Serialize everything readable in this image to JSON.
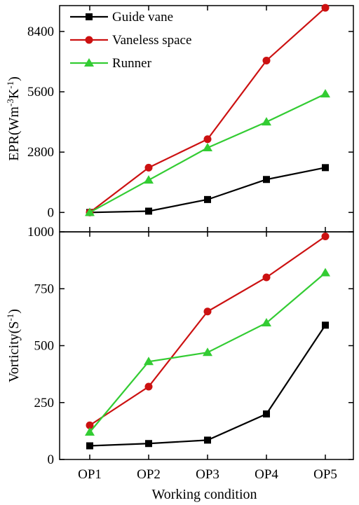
{
  "chart_data": [
    {
      "type": "line",
      "panel": "top",
      "ylabel": "EPR(Wm-3K-1)",
      "ylabel_parts": [
        "EPR(Wm",
        "-3",
        "K",
        "-1",
        ")"
      ],
      "ylim": [
        -900,
        9600
      ],
      "yticks": [
        0,
        2800,
        5600,
        8400
      ],
      "ytick_labels": [
        "0",
        "2800",
        "5600",
        "8400"
      ],
      "categories": [
        "OP1",
        "OP2",
        "OP3",
        "OP4",
        "OP5"
      ],
      "legend_position": "top-left",
      "series": [
        {
          "name": "Guide vane",
          "color": "#000000",
          "marker": "square",
          "values": [
            0,
            60,
            600,
            1530,
            2080
          ]
        },
        {
          "name": "Vaneless space",
          "color": "#cc1111",
          "marker": "circle",
          "values": [
            0,
            2080,
            3400,
            7050,
            9500
          ]
        },
        {
          "name": "Runner",
          "color": "#33cc33",
          "marker": "triangle",
          "values": [
            0,
            1500,
            3000,
            4200,
            5500
          ]
        }
      ]
    },
    {
      "type": "line",
      "panel": "bottom",
      "ylabel": "Vorticity(S-1)",
      "ylabel_parts": [
        "Vorticity(S",
        "-1",
        ")"
      ],
      "xlabel": "Working condition",
      "ylim": [
        0,
        1000
      ],
      "yticks": [
        0,
        250,
        500,
        750,
        1000
      ],
      "ytick_labels": [
        "0",
        "250",
        "500",
        "750",
        "1000"
      ],
      "categories": [
        "OP1",
        "OP2",
        "OP3",
        "OP4",
        "OP5"
      ],
      "series": [
        {
          "name": "Guide vane",
          "color": "#000000",
          "marker": "square",
          "values": [
            60,
            70,
            85,
            200,
            590
          ]
        },
        {
          "name": "Vaneless space",
          "color": "#cc1111",
          "marker": "circle",
          "values": [
            150,
            320,
            650,
            800,
            980
          ]
        },
        {
          "name": "Runner",
          "color": "#33cc33",
          "marker": "triangle",
          "values": [
            120,
            430,
            470,
            600,
            820
          ]
        }
      ]
    }
  ]
}
